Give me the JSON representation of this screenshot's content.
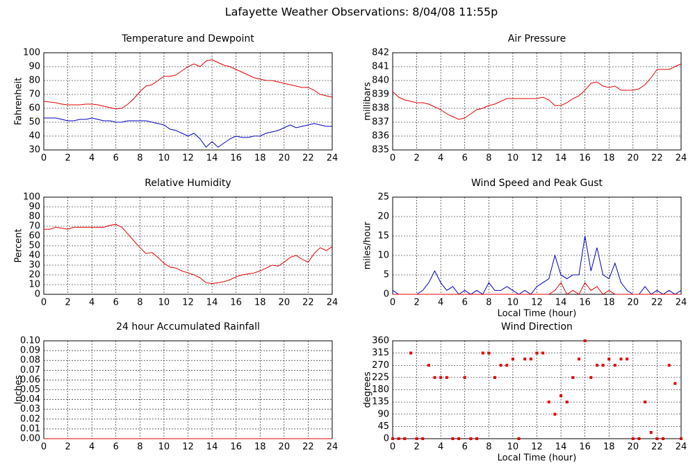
{
  "title": "Lafayette Weather Observations: 8/04/08 11:55p",
  "chart_data": [
    {
      "type": "line",
      "title": "Temperature and Dewpoint",
      "ylabel": "Fahrenheit",
      "x": [
        0,
        0.5,
        1,
        1.5,
        2,
        2.5,
        3,
        3.5,
        4,
        4.5,
        5,
        5.5,
        6,
        6.5,
        7,
        7.5,
        8,
        8.5,
        9,
        9.5,
        10,
        10.5,
        11,
        11.5,
        12,
        12.5,
        13,
        13.5,
        14,
        14.5,
        15,
        15.5,
        16,
        16.5,
        17,
        17.5,
        18,
        18.5,
        19,
        19.5,
        20,
        20.5,
        21,
        21.5,
        22,
        22.5,
        23,
        23.5,
        24
      ],
      "series": [
        {
          "color": "#e00000",
          "values": [
            65,
            64.5,
            64,
            63,
            62.5,
            62.5,
            62.5,
            63,
            63,
            62.5,
            61.5,
            60.5,
            59.5,
            60,
            63,
            67,
            72,
            76,
            77,
            80,
            83,
            83,
            84,
            87,
            90,
            92,
            90,
            94,
            95,
            93,
            91,
            90,
            88,
            86,
            84,
            82,
            81,
            80,
            80,
            79,
            78,
            77,
            76,
            75,
            75,
            73,
            70,
            69,
            68
          ]
        },
        {
          "color": "#0000c0",
          "values": [
            53,
            53,
            53,
            52,
            51,
            51,
            52,
            52,
            53,
            52,
            51,
            51,
            50,
            50,
            51,
            51,
            51,
            51,
            50,
            49,
            48,
            45,
            44,
            42,
            40,
            42,
            38,
            32,
            36,
            32,
            35,
            38,
            40,
            39,
            39,
            40,
            40,
            42,
            43,
            44,
            46,
            48,
            46,
            47,
            48,
            49,
            48,
            47,
            47
          ]
        }
      ],
      "xlim": [
        0,
        24
      ],
      "ylim": [
        30,
        100
      ],
      "xticks": [
        0,
        2,
        4,
        6,
        8,
        10,
        12,
        14,
        16,
        18,
        20,
        22,
        24
      ],
      "yticks": [
        30,
        40,
        50,
        60,
        70,
        80,
        90,
        100
      ],
      "grid": true
    },
    {
      "type": "line",
      "title": "Air Pressure",
      "ylabel": "millibars",
      "x": [
        0,
        0.5,
        1,
        1.5,
        2,
        2.5,
        3,
        3.5,
        4,
        4.5,
        5,
        5.5,
        6,
        6.5,
        7,
        7.5,
        8,
        8.5,
        9,
        9.5,
        10,
        10.5,
        11,
        11.5,
        12,
        12.5,
        13,
        13.5,
        14,
        14.5,
        15,
        15.5,
        16,
        16.5,
        17,
        17.5,
        18,
        18.5,
        19,
        19.5,
        20,
        20.5,
        21,
        21.5,
        22,
        22.5,
        23,
        23.5,
        24
      ],
      "series": [
        {
          "color": "#e00000",
          "values": [
            839.2,
            838.8,
            838.6,
            838.5,
            838.4,
            838.4,
            838.3,
            838.1,
            837.9,
            837.6,
            837.4,
            837.2,
            837.3,
            837.6,
            837.9,
            838.0,
            838.2,
            838.3,
            838.5,
            838.7,
            838.7,
            838.7,
            838.7,
            838.7,
            838.7,
            838.8,
            838.6,
            838.2,
            838.2,
            838.4,
            838.7,
            838.9,
            839.3,
            839.8,
            839.9,
            839.6,
            839.5,
            839.6,
            839.3,
            839.3,
            839.3,
            839.4,
            839.7,
            840.2,
            840.8,
            840.8,
            840.8,
            841.0,
            841.2
          ]
        }
      ],
      "xlim": [
        0,
        24
      ],
      "ylim": [
        835,
        842
      ],
      "xticks": [
        0,
        2,
        4,
        6,
        8,
        10,
        12,
        14,
        16,
        18,
        20,
        22,
        24
      ],
      "yticks": [
        835,
        836,
        837,
        838,
        839,
        840,
        841,
        842
      ],
      "grid": true
    },
    {
      "type": "line",
      "title": "Relative Humidity",
      "ylabel": "Percent",
      "x": [
        0,
        0.5,
        1,
        1.5,
        2,
        2.5,
        3,
        3.5,
        4,
        4.5,
        5,
        5.5,
        6,
        6.5,
        7,
        7.5,
        8,
        8.5,
        9,
        9.5,
        10,
        10.5,
        11,
        11.5,
        12,
        12.5,
        13,
        13.5,
        14,
        14.5,
        15,
        15.5,
        16,
        16.5,
        17,
        17.5,
        18,
        18.5,
        19,
        19.5,
        20,
        20.5,
        21,
        21.5,
        22,
        22.5,
        23,
        23.5,
        24
      ],
      "series": [
        {
          "color": "#e00000",
          "values": [
            67,
            67,
            69,
            68,
            67,
            69,
            69,
            69,
            69,
            69,
            69,
            71,
            72,
            69,
            62,
            55,
            48,
            42,
            43,
            38,
            32,
            28,
            27,
            24,
            22,
            20,
            17,
            12,
            11,
            12,
            13,
            15,
            18,
            20,
            21,
            22,
            24,
            27,
            30,
            29,
            33,
            38,
            40,
            36,
            33,
            42,
            48,
            45,
            49
          ]
        }
      ],
      "xlim": [
        0,
        24
      ],
      "ylim": [
        0,
        100
      ],
      "xticks": [
        0,
        2,
        4,
        6,
        8,
        10,
        12,
        14,
        16,
        18,
        20,
        22,
        24
      ],
      "yticks": [
        0,
        10,
        20,
        30,
        40,
        50,
        60,
        70,
        80,
        90,
        100
      ],
      "grid": true
    },
    {
      "type": "line",
      "title": "Wind Speed and Peak Gust",
      "ylabel": "miles/hour",
      "xlabel": "Local Time (hour)",
      "x": [
        0,
        0.5,
        1,
        1.5,
        2,
        2.5,
        3,
        3.5,
        4,
        4.5,
        5,
        5.5,
        6,
        6.5,
        7,
        7.5,
        8,
        8.5,
        9,
        9.5,
        10,
        10.5,
        11,
        11.5,
        12,
        12.5,
        13,
        13.5,
        14,
        14.5,
        15,
        15.5,
        16,
        16.5,
        17,
        17.5,
        18,
        18.5,
        19,
        19.5,
        20,
        20.5,
        21,
        21.5,
        22,
        22.5,
        23,
        23.5,
        24
      ],
      "series": [
        {
          "color": "#0000c0",
          "values": [
            1,
            0,
            0,
            0,
            0,
            1,
            3,
            6,
            3,
            1,
            2,
            0,
            1,
            0,
            1,
            0,
            3,
            1,
            1,
            2,
            1,
            0,
            1,
            0,
            2,
            3,
            4,
            10,
            5,
            4,
            5,
            5,
            15,
            6,
            12,
            5,
            4,
            8,
            3,
            1,
            0,
            0,
            2,
            0,
            1,
            0,
            1,
            0,
            1
          ]
        },
        {
          "color": "#e00000",
          "values": [
            0,
            0,
            0,
            0,
            0,
            0,
            0,
            0,
            0,
            0,
            0,
            0,
            0,
            0,
            0,
            0,
            0,
            0,
            0,
            0,
            0,
            0,
            0,
            0,
            0,
            0,
            0,
            1,
            3,
            0,
            1,
            0,
            3,
            1,
            2,
            0,
            1,
            0,
            0,
            0,
            0,
            0,
            0,
            0,
            0,
            0,
            0,
            0,
            0
          ]
        }
      ],
      "xlim": [
        0,
        24
      ],
      "ylim": [
        0,
        25
      ],
      "xticks": [
        0,
        2,
        4,
        6,
        8,
        10,
        12,
        14,
        16,
        18,
        20,
        22,
        24
      ],
      "yticks": [
        0,
        5,
        10,
        15,
        20,
        25
      ],
      "grid": true
    },
    {
      "type": "line",
      "title": "24 hour Accumulated Rainfall",
      "ylabel": "Inches",
      "x": [
        0,
        2,
        4,
        6,
        8,
        10,
        12,
        14,
        16,
        18,
        20,
        22,
        24
      ],
      "series": [
        {
          "color": "#e00000",
          "values": [
            0,
            0,
            0,
            0,
            0,
            0,
            0,
            0,
            0,
            0,
            0,
            0,
            0
          ]
        }
      ],
      "xlim": [
        0,
        24
      ],
      "ylim": [
        0,
        0.1
      ],
      "xticks": [
        0,
        2,
        4,
        6,
        8,
        10,
        12,
        14,
        16,
        18,
        20,
        22,
        24
      ],
      "yticks": [
        {
          "value": 0,
          "label": "0.00"
        },
        {
          "value": 0.01,
          "label": "0.01"
        },
        {
          "value": 0.02,
          "label": "0.02"
        },
        {
          "value": 0.03,
          "label": "0.03"
        },
        {
          "value": 0.04,
          "label": "0.04"
        },
        {
          "value": 0.05,
          "label": "0.05"
        },
        {
          "value": 0.06,
          "label": "0.06"
        },
        {
          "value": 0.07,
          "label": "0.07"
        },
        {
          "value": 0.08,
          "label": "0.08"
        },
        {
          "value": 0.09,
          "label": "0.09"
        },
        {
          "value": 0.1,
          "label": "0.10"
        }
      ],
      "grid": true
    },
    {
      "type": "scatter",
      "title": "Wind Direction",
      "ylabel": "degrees",
      "xlabel": "Local Time (hour)",
      "x": [
        0,
        0.5,
        1,
        1.5,
        2,
        2.5,
        3,
        3.5,
        4,
        4.5,
        5,
        5.5,
        6,
        6.5,
        7,
        7.5,
        8,
        8.5,
        9,
        9.5,
        10,
        10.5,
        11,
        11.5,
        12,
        12.5,
        13,
        13.5,
        14,
        14.5,
        15,
        15.5,
        16,
        16.5,
        17,
        17.5,
        18,
        18.5,
        19,
        19.5,
        20,
        20.5,
        21,
        21.5,
        22,
        22.5,
        23,
        23.5,
        24
      ],
      "series": [
        {
          "color": "#e00000",
          "values": [
            0,
            0,
            0,
            315,
            0,
            0,
            270,
            225,
            225,
            225,
            0,
            0,
            225,
            0,
            0,
            315,
            315,
            225,
            270,
            270,
            293,
            0,
            293,
            293,
            315,
            315,
            135,
            90,
            158,
            135,
            225,
            293,
            360,
            225,
            270,
            270,
            293,
            270,
            293,
            293,
            0,
            0,
            135,
            23,
            0,
            0,
            270,
            203,
            0
          ]
        }
      ],
      "xlim": [
        0,
        24
      ],
      "ylim": [
        0,
        360
      ],
      "xticks": [
        0,
        2,
        4,
        6,
        8,
        10,
        12,
        14,
        16,
        18,
        20,
        22,
        24
      ],
      "yticks": [
        0,
        45,
        90,
        135,
        180,
        225,
        270,
        315,
        360
      ],
      "grid": true
    }
  ]
}
